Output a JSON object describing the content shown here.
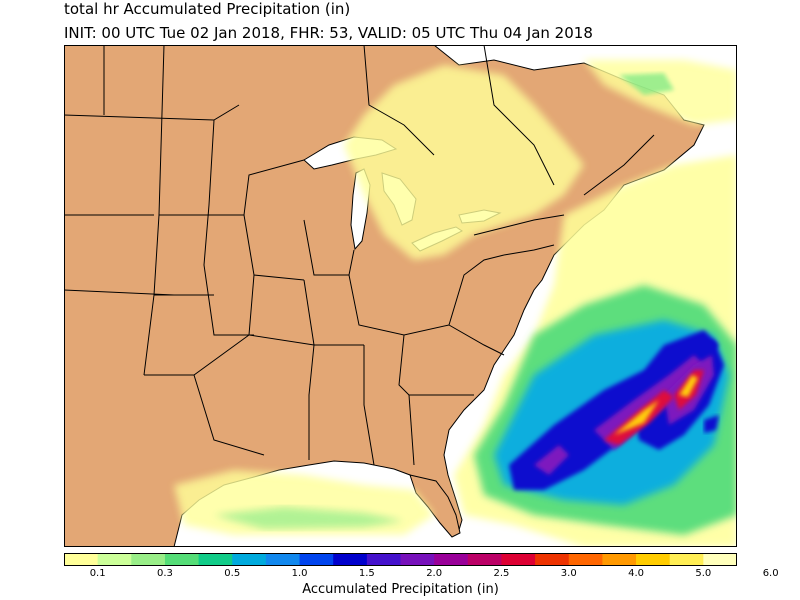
{
  "header": {
    "title": "total hr Accumulated Precipitation (in)",
    "subtitle": "INIT: 00 UTC Tue 02 Jan 2018, FHR: 53, VALID: 05 UTC Thu 04 Jan 2018"
  },
  "colorbar": {
    "label": "Accumulated Precipitation (in)",
    "ticks": [
      "0.1",
      "0.3",
      "0.5",
      "1.0",
      "1.5",
      "2.0",
      "2.5",
      "3.0",
      "4.0",
      "5.0",
      "6.0"
    ],
    "colors": [
      "#ffff99",
      "#ccff99",
      "#99ee88",
      "#55dd77",
      "#11cc88",
      "#00aadd",
      "#1188ee",
      "#0044ee",
      "#0000cc",
      "#4411cc",
      "#7711bb",
      "#990099",
      "#bb0066",
      "#dd0033",
      "#ee3300",
      "#ff6600",
      "#ff9900",
      "#ffcc00",
      "#ffee55",
      "#ffffbb"
    ]
  },
  "map": {
    "land_color": "#e3a775",
    "ocean_color": "#ffffff"
  }
}
